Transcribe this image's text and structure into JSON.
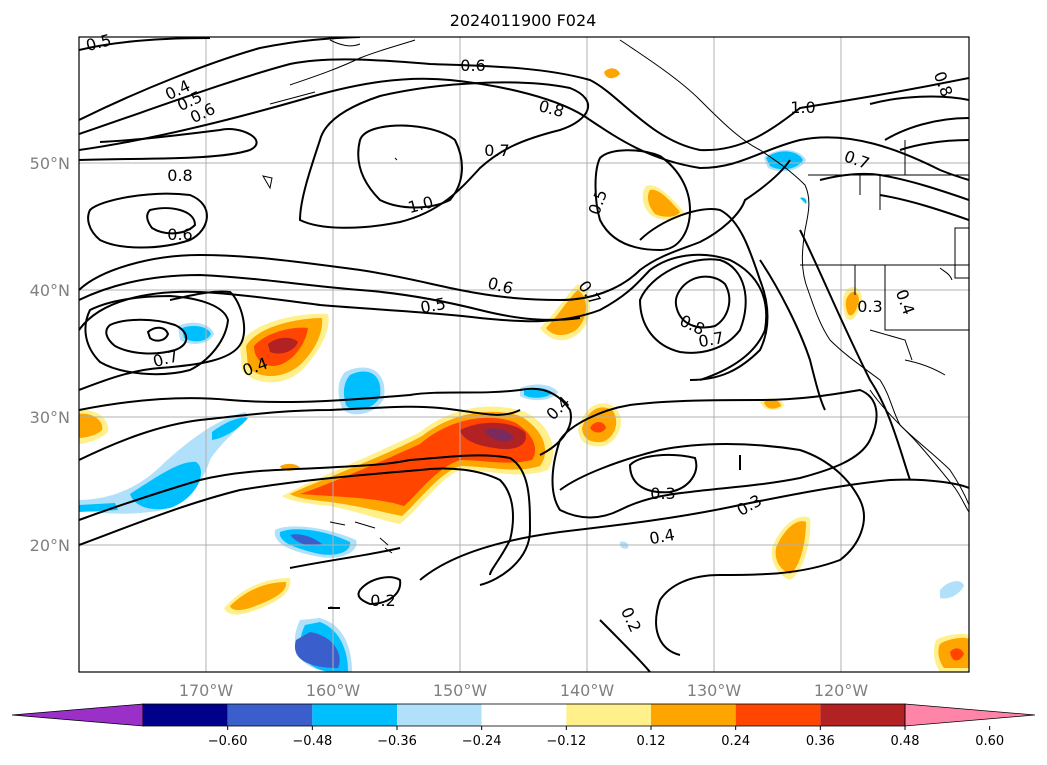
{
  "title": "2024011900 F024",
  "lat_labels": [
    "50°N",
    "40°N",
    "30°N",
    "20°N"
  ],
  "lon_labels": [
    "170°W",
    "160°W",
    "150°W",
    "140°W",
    "130°W",
    "120°W"
  ],
  "colorbar": {
    "ticks": [
      "−0.60",
      "−0.48",
      "−0.36",
      "−0.24",
      "−0.12",
      "0.12",
      "0.24",
      "0.36",
      "0.48",
      "0.60"
    ],
    "colors": [
      "#9b30c8",
      "#00008b",
      "#3a5fcd",
      "#00bfff",
      "#b0e0fa",
      "#ffffff",
      "#fff08c",
      "#ffa500",
      "#ff4500",
      "#b22222",
      "#ff85a8"
    ]
  },
  "contour_labels": [
    {
      "text": "0.5",
      "name": "contour-label-05-a"
    },
    {
      "text": "0.4",
      "name": "contour-label-04-a"
    },
    {
      "text": "0.5",
      "name": "contour-label-05-b"
    },
    {
      "text": "0.6",
      "name": "contour-label-06-a"
    },
    {
      "text": "0.6",
      "name": "contour-label-06-b"
    },
    {
      "text": "0.8",
      "name": "contour-label-08-a"
    },
    {
      "text": "0.7",
      "name": "contour-label-07-a"
    },
    {
      "text": "1.0",
      "name": "contour-label-10-a"
    },
    {
      "text": "1.0",
      "name": "contour-label-10-b"
    },
    {
      "text": "0.7",
      "name": "contour-label-07-b"
    },
    {
      "text": "0.8",
      "name": "contour-label-08-b"
    },
    {
      "text": "0.8",
      "name": "contour-label-08-c"
    },
    {
      "text": "0.6",
      "name": "contour-label-06-c"
    },
    {
      "text": "0.5",
      "name": "contour-label-05-c"
    },
    {
      "text": "0.5",
      "name": "contour-label-05-d"
    },
    {
      "text": "0.6",
      "name": "contour-label-06-d"
    },
    {
      "text": "0.7",
      "name": "contour-label-07-c"
    },
    {
      "text": "0.8",
      "name": "contour-label-08-d"
    },
    {
      "text": "0.7",
      "name": "contour-label-07-d"
    },
    {
      "text": "0.7",
      "name": "contour-label-07-e"
    },
    {
      "text": "0.4",
      "name": "contour-label-04-b"
    },
    {
      "text": "0.3",
      "name": "contour-label-03-a"
    },
    {
      "text": "0.4",
      "name": "contour-label-04-c"
    },
    {
      "text": "0.4",
      "name": "contour-label-04-d"
    },
    {
      "text": "0.3",
      "name": "contour-label-03-b"
    },
    {
      "text": "0.3",
      "name": "contour-label-03-c"
    },
    {
      "text": "0.4",
      "name": "contour-label-04-e"
    },
    {
      "text": "0.2",
      "name": "contour-label-02-a"
    },
    {
      "text": "0.2",
      "name": "contour-label-02-b"
    }
  ]
}
